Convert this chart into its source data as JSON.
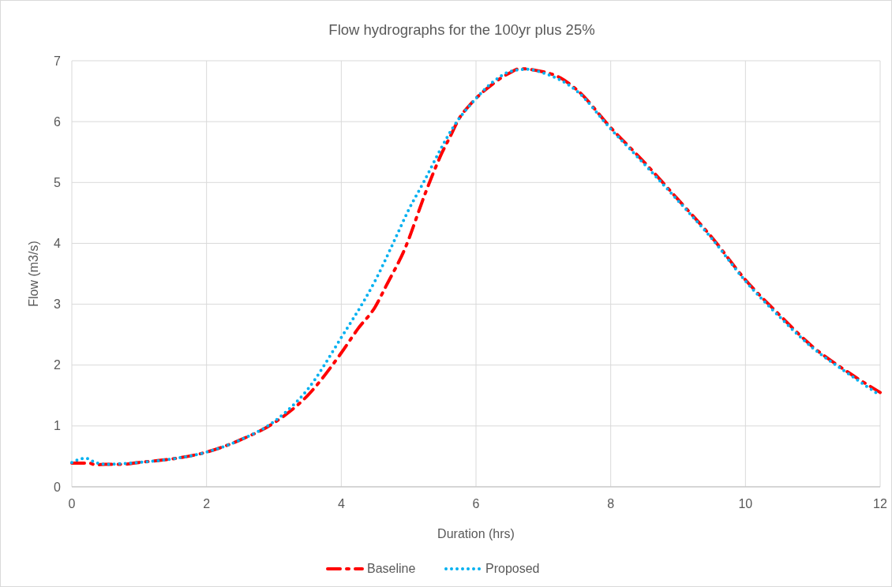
{
  "chart_data": {
    "type": "line",
    "title": "Flow hydrographs for the 100yr plus 25%",
    "xlabel": "Duration (hrs)",
    "ylabel": "Flow (m3/s)",
    "xlim": [
      0,
      12
    ],
    "xticks": [
      0,
      2,
      4,
      6,
      8,
      10,
      12
    ],
    "ylim": [
      0,
      7
    ],
    "yticks": [
      0,
      1,
      2,
      3,
      4,
      5,
      6,
      7
    ],
    "grid": true,
    "legend": "bottom",
    "series": [
      {
        "name": "Baseline",
        "color": "#ff0000",
        "line_style": "dashed",
        "x": [
          0,
          0.25,
          0.36,
          0.5,
          0.75,
          1,
          1.5,
          2,
          2.5,
          3,
          3.5,
          4,
          4.25,
          4.5,
          4.67,
          4.94,
          5.25,
          5.36,
          5.5,
          5.61,
          5.75,
          5.93,
          6.25,
          6.5,
          6.65,
          6.9,
          7.25,
          7.5,
          8,
          8.5,
          9,
          9.5,
          10,
          10.5,
          11,
          11.5,
          12
        ],
        "values": [
          0.39,
          0.39,
          0.36,
          0.37,
          0.37,
          0.4,
          0.46,
          0.57,
          0.77,
          1.05,
          1.5,
          2.2,
          2.6,
          2.95,
          3.31,
          3.9,
          4.83,
          5.14,
          5.5,
          5.74,
          6.05,
          6.3,
          6.62,
          6.8,
          6.87,
          6.84,
          6.72,
          6.52,
          5.9,
          5.33,
          4.72,
          4.1,
          3.4,
          2.83,
          2.3,
          1.9,
          1.55
        ]
      },
      {
        "name": "Proposed",
        "color": "#00b0f0",
        "line_style": "dotted",
        "x": [
          0,
          0.2,
          0.35,
          0.5,
          0.75,
          1,
          1.5,
          2,
          2.5,
          3,
          3.5,
          4.01,
          4.35,
          4.5,
          4.79,
          5,
          5.23,
          5.5,
          5.64,
          6,
          6.25,
          6.5,
          6.75,
          7,
          7.5,
          8,
          8.5,
          9,
          9.5,
          10,
          10.5,
          11,
          11.5,
          12
        ],
        "values": [
          0.4,
          0.47,
          0.4,
          0.37,
          0.38,
          0.4,
          0.46,
          0.57,
          0.77,
          1.07,
          1.6,
          2.47,
          3.08,
          3.38,
          4.05,
          4.55,
          5.02,
          5.6,
          5.87,
          6.38,
          6.65,
          6.82,
          6.86,
          6.8,
          6.5,
          5.88,
          5.3,
          4.7,
          4.08,
          3.38,
          2.8,
          2.28,
          1.88,
          1.5
        ]
      }
    ]
  }
}
